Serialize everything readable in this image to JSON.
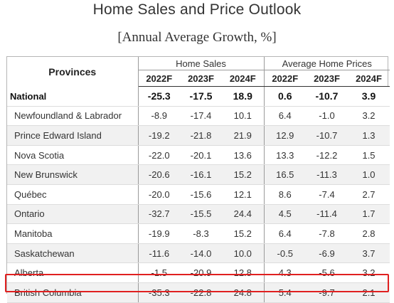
{
  "title": "Home Sales and Price Outlook",
  "subtitle": "[Annual Average Growth, %]",
  "table": {
    "provinces_header": "Provinces",
    "groups": [
      "Home Sales",
      "Average Home Prices"
    ],
    "years": [
      "2022F",
      "2023F",
      "2024F",
      "2022F",
      "2023F",
      "2024F"
    ],
    "rows": [
      {
        "name": "National",
        "values": [
          "-25.3",
          "-17.5",
          "18.9",
          "0.6",
          "-10.7",
          "3.9"
        ]
      },
      {
        "name": "Newfoundland & Labrador",
        "values": [
          "-8.9",
          "-17.4",
          "10.1",
          "6.4",
          "-1.0",
          "3.2"
        ]
      },
      {
        "name": "Prince Edward Island",
        "values": [
          "-19.2",
          "-21.8",
          "21.9",
          "12.9",
          "-10.7",
          "1.3"
        ]
      },
      {
        "name": "Nova Scotia",
        "values": [
          "-22.0",
          "-20.1",
          "13.6",
          "13.3",
          "-12.2",
          "1.5"
        ]
      },
      {
        "name": "New Brunswick",
        "values": [
          "-20.6",
          "-16.1",
          "15.2",
          "16.5",
          "-11.3",
          "1.0"
        ]
      },
      {
        "name": "Québec",
        "values": [
          "-20.0",
          "-15.6",
          "12.1",
          "8.6",
          "-7.4",
          "2.7"
        ]
      },
      {
        "name": "Ontario",
        "values": [
          "-32.7",
          "-15.5",
          "24.4",
          "4.5",
          "-11.4",
          "1.7"
        ]
      },
      {
        "name": "Manitoba",
        "values": [
          "-19.9",
          "-8.3",
          "15.2",
          "6.4",
          "-7.8",
          "2.8"
        ]
      },
      {
        "name": "Saskatchewan",
        "values": [
          "-11.6",
          "-14.0",
          "10.0",
          "-0.5",
          "-6.9",
          "3.7"
        ]
      },
      {
        "name": "Alberta",
        "values": [
          "-1.5",
          "-20.9",
          "12.8",
          "4.3",
          "-5.6",
          "3.2"
        ]
      },
      {
        "name": "British Columbia",
        "values": [
          "-35.3",
          "-22.8",
          "24.8",
          "5.4",
          "-9.7",
          "2.1"
        ]
      }
    ],
    "highlighted_row": "British Columbia"
  },
  "colors": {
    "highlight": "#e02020",
    "stripe": "#f1f1f1"
  }
}
